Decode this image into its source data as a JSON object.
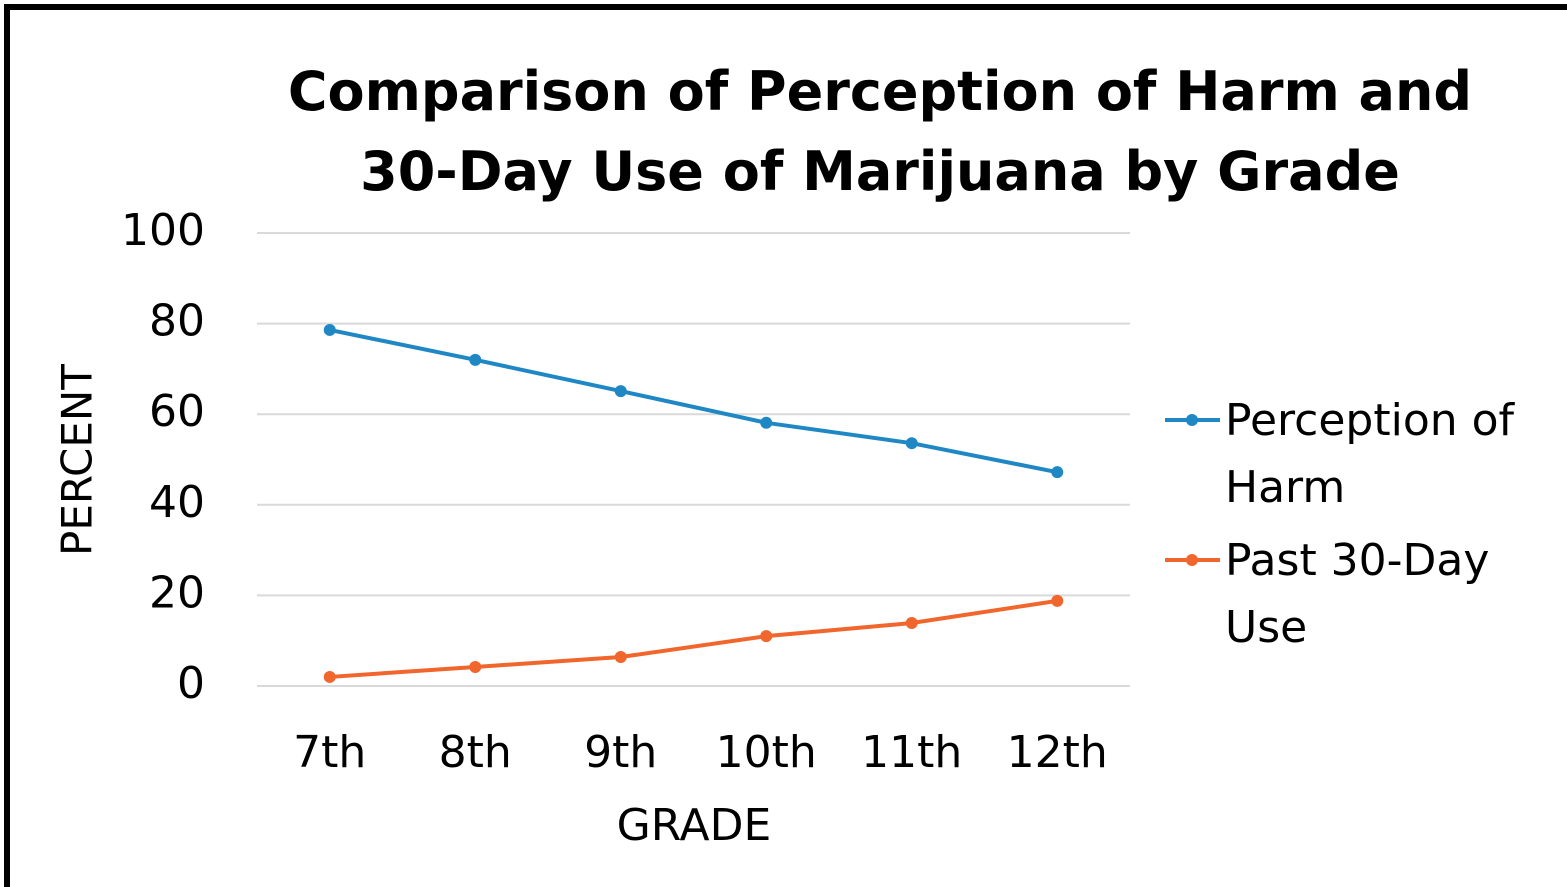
{
  "chart_data": {
    "type": "line",
    "title": "Comparison of Perception of Harm and 30-Day Use of Marijuana by Grade",
    "x_label": "GRADE",
    "y_label": "PERCENT",
    "categories": [
      "7th",
      "8th",
      "9th",
      "10th",
      "11th",
      "12th"
    ],
    "series": [
      {
        "name": "Perception of Harm",
        "color": "#1f88c4",
        "values": [
          78.6,
          72.0,
          65.1,
          58.1,
          53.6,
          47.2
        ]
      },
      {
        "name": "Past 30-Day Use",
        "color": "#f0662c",
        "values": [
          2.0,
          4.2,
          6.4,
          11.0,
          13.9,
          18.8
        ]
      }
    ],
    "ylim": [
      0,
      100
    ],
    "yticks": [
      0,
      20,
      40,
      60,
      80,
      100
    ],
    "grid": true,
    "legend": "right"
  }
}
